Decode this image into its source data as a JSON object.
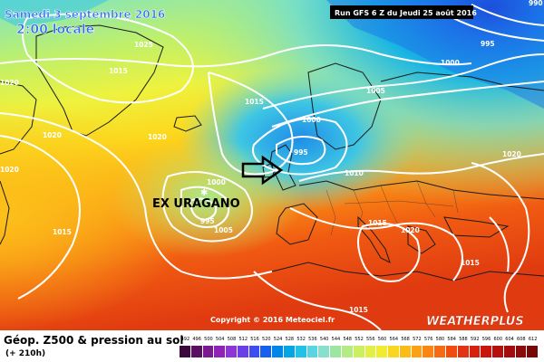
{
  "header": {
    "date": "Samedi 3 septembre 2016",
    "local_time": "2:00 locale",
    "run": "Run GFS 6 Z du Jeudi 25 août 2016"
  },
  "annotation": {
    "storm_label": "EX URAGANO"
  },
  "isobars": [
    {
      "id": "1025-nw",
      "value": "1025"
    },
    {
      "id": "1015-nw",
      "value": "1015"
    },
    {
      "id": "1020-w",
      "value": "1020"
    },
    {
      "id": "1020-w2",
      "value": "1020"
    },
    {
      "id": "1020-mid",
      "value": "1020"
    },
    {
      "id": "1020-center",
      "value": "1020"
    },
    {
      "id": "1015-center",
      "value": "1015"
    },
    {
      "id": "1015-sw",
      "value": "1015"
    },
    {
      "id": "1000-low",
      "value": "1000"
    },
    {
      "id": "995-low",
      "value": "995"
    },
    {
      "id": "1005-low",
      "value": "1005"
    },
    {
      "id": "1000-uk",
      "value": "1000"
    },
    {
      "id": "995-uk",
      "value": "995"
    },
    {
      "id": "1005-north",
      "value": "1005"
    },
    {
      "id": "1000-north",
      "value": "1000"
    },
    {
      "id": "995-top",
      "value": "995"
    },
    {
      "id": "990-top",
      "value": "990"
    },
    {
      "id": "1010-eu",
      "value": "1010"
    },
    {
      "id": "1015-eu",
      "value": "1015"
    },
    {
      "id": "1020-east",
      "value": "1020"
    },
    {
      "id": "1020-italy",
      "value": "1020"
    },
    {
      "id": "1015-med",
      "value": "1015"
    },
    {
      "id": "1015-se",
      "value": "1015"
    }
  ],
  "copyright": "Copyright © 2016 Meteociel.fr",
  "brand": "WEATHERPLUS",
  "legend": {
    "title": "Géop. Z500 & pression au sol",
    "forecast_hour": "(+ 210h)",
    "ticks": [
      "492",
      "496",
      "500",
      "504",
      "508",
      "512",
      "516",
      "520",
      "524",
      "528",
      "532",
      "536",
      "540",
      "544",
      "548",
      "552",
      "556",
      "560",
      "564",
      "568",
      "572",
      "576",
      "580",
      "584",
      "588",
      "592",
      "596",
      "600",
      "604",
      "608",
      "612"
    ],
    "colors": [
      "#3a0a3a",
      "#5a0f63",
      "#7a1a8e",
      "#8f23b8",
      "#8f34d8",
      "#6a40e6",
      "#3d4df0",
      "#1560ee",
      "#0085e8",
      "#00a6e6",
      "#22c2e6",
      "#58d4e2",
      "#86e0cc",
      "#9ce6a4",
      "#b4ec84",
      "#ccef62",
      "#e2f046",
      "#f2ec30",
      "#fbd61e",
      "#fcbc16",
      "#fca016",
      "#fa8414",
      "#f76a12",
      "#f04c10",
      "#e53210",
      "#d8200e",
      "#c8160c",
      "#b5100c",
      "#a20c0c",
      "#8e0a0a",
      "#780808"
    ]
  }
}
